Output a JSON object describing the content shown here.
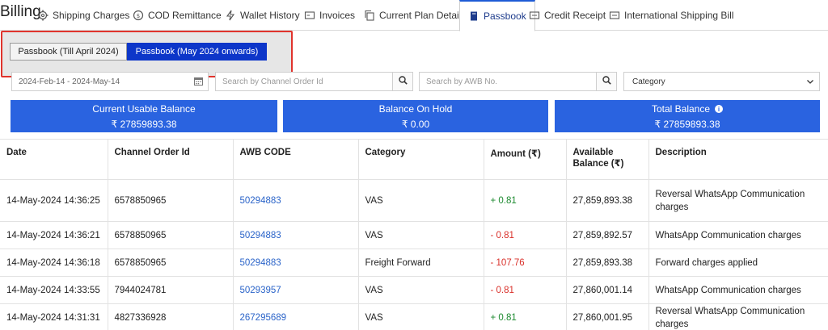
{
  "page": {
    "title": "Billing"
  },
  "tabs": [
    {
      "label": "Shipping Charges",
      "icon": "gear-icon"
    },
    {
      "label": "COD Remittance",
      "icon": "cash-icon"
    },
    {
      "label": "Wallet History",
      "icon": "lightning-icon"
    },
    {
      "label": "Invoices",
      "icon": "invoice-icon"
    },
    {
      "label": "Current Plan Details",
      "icon": "copy-icon"
    },
    {
      "label": "Passbook",
      "icon": "book-icon",
      "active": true
    },
    {
      "label": "Credit Receipt",
      "icon": "receipt-icon"
    },
    {
      "label": "International Shipping Bill",
      "icon": "receipt-icon"
    }
  ],
  "passbook_toggle": {
    "option_old": "Passbook (Till April 2024)",
    "option_new": "Passbook (May 2024 onwards)",
    "selected": "option_new"
  },
  "filters": {
    "date_range": "2024-Feb-14 - 2024-May-14",
    "channel_order_placeholder": "Search by Channel Order Id",
    "awb_placeholder": "Search by AWB No.",
    "category_selected": "Category"
  },
  "balances": {
    "usable_label": "Current Usable Balance",
    "usable_value": "₹  27859893.38",
    "hold_label": "Balance On Hold",
    "hold_value": "₹  0.00",
    "total_label": "Total Balance",
    "total_value": "₹  27859893.38"
  },
  "table": {
    "headers": [
      "Date",
      "Channel Order Id",
      "AWB CODE",
      "Category",
      "Amount (₹)",
      "Available Balance (₹)",
      "Description"
    ],
    "rows": [
      {
        "date": "14-May-2024 14:36:25",
        "order": "6578850965",
        "awb": "50294883",
        "category": "VAS",
        "amount": "+ 0.81",
        "balance": "27,859,893.38",
        "description": "Reversal WhatsApp Communication charges"
      },
      {
        "date": "14-May-2024 14:36:21",
        "order": "6578850965",
        "awb": "50294883",
        "category": "VAS",
        "amount": "- 0.81",
        "balance": "27,859,892.57",
        "description": "WhatsApp Communication charges"
      },
      {
        "date": "14-May-2024 14:36:18",
        "order": "6578850965",
        "awb": "50294883",
        "category": "Freight Forward",
        "amount": "- 107.76",
        "balance": "27,859,893.38",
        "description": "Forward charges applied"
      },
      {
        "date": "14-May-2024 14:33:55",
        "order": "7944024781",
        "awb": "50293957",
        "category": "VAS",
        "amount": "- 0.81",
        "balance": "27,860,001.14",
        "description": "WhatsApp Communication charges"
      },
      {
        "date": "14-May-2024 14:31:31",
        "order": "4827336928",
        "awb": "267295689",
        "category": "VAS",
        "amount": "+ 0.81",
        "balance": "27,860,001.95",
        "description": "Reversal WhatsApp Communication charges"
      }
    ]
  },
  "colors": {
    "accent": "#2a63e0",
    "toggle_active": "#0d36c9",
    "highlight_border": "#e0332c",
    "positive": "#1c8a2f",
    "negative": "#d9302a",
    "link": "#2b64c9"
  }
}
